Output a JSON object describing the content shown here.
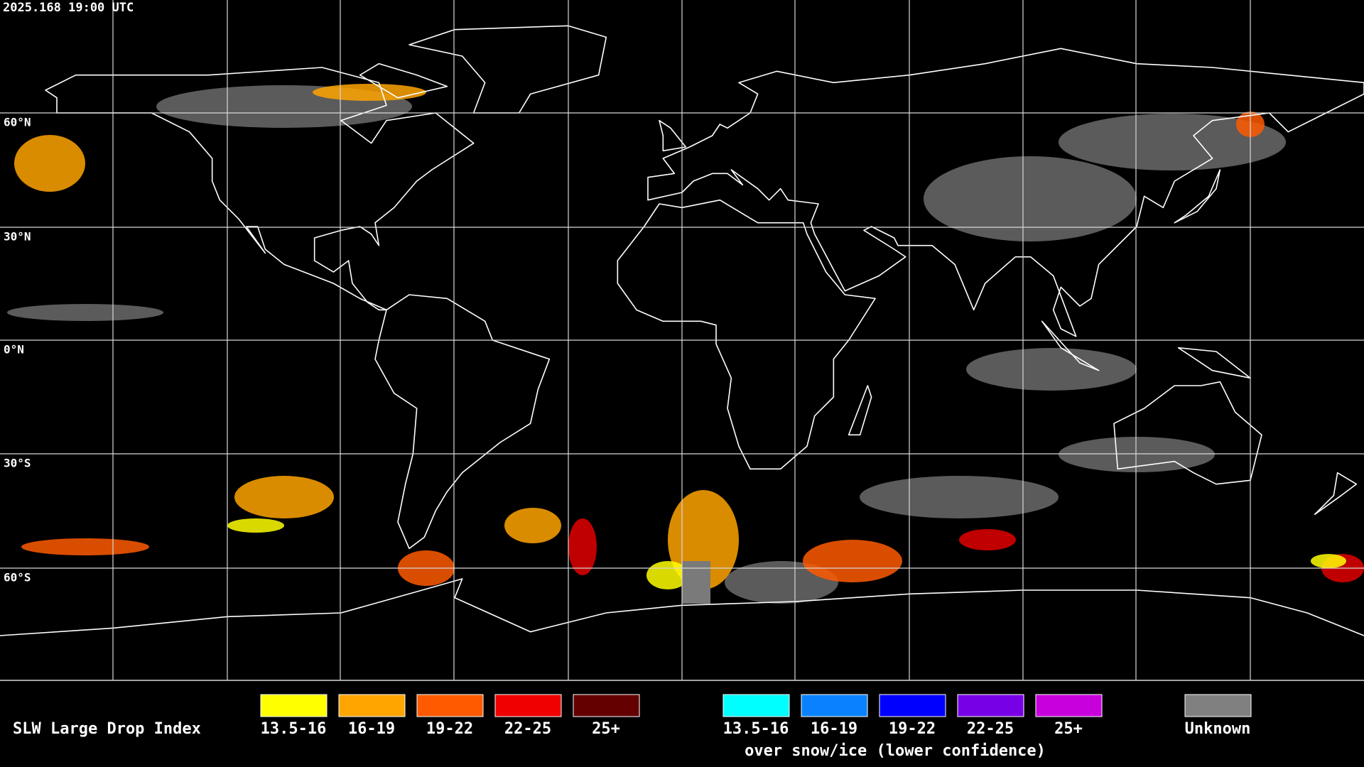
{
  "header": {
    "timestamp": "2025.168 19:00 UTC"
  },
  "map": {
    "latitude_labels": [
      "60°N",
      "30°N",
      "0°N",
      "30°S",
      "60°S"
    ]
  },
  "legend": {
    "title": "SLW Large Drop Index",
    "liquid": [
      {
        "label": "13.5-16",
        "color": "#ffff00"
      },
      {
        "label": "16-19",
        "color": "#ffa500"
      },
      {
        "label": "19-22",
        "color": "#ff5a00"
      },
      {
        "label": "22-25",
        "color": "#f00000"
      },
      {
        "label": "25+",
        "color": "#640000"
      }
    ],
    "snow_ice": [
      {
        "label": "13.5-16",
        "color": "#00ffff"
      },
      {
        "label": "16-19",
        "color": "#0a82ff"
      },
      {
        "label": "19-22",
        "color": "#0000ff"
      },
      {
        "label": "22-25",
        "color": "#7800e6"
      },
      {
        "label": "25+",
        "color": "#c800dc"
      }
    ],
    "snow_ice_caption": "over snow/ice (lower confidence)",
    "unknown": {
      "label": "Unknown",
      "color": "#808080"
    }
  }
}
